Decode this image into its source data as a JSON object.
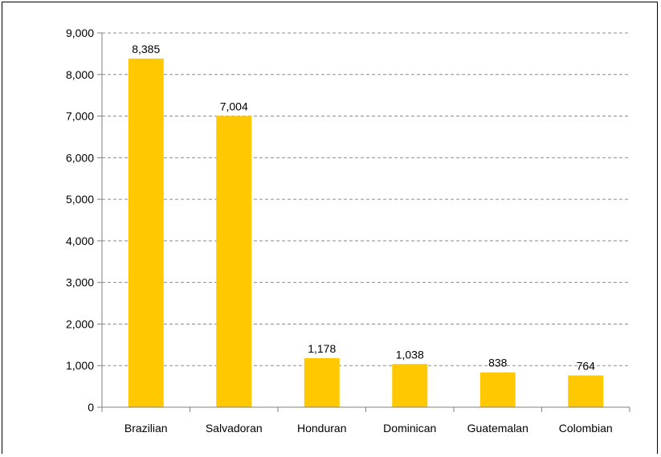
{
  "chart_data": {
    "type": "bar",
    "categories": [
      "Brazilian",
      "Salvadoran",
      "Honduran",
      "Dominican",
      "Guatemalan",
      "Colombian"
    ],
    "series": [
      {
        "values": [
          8385,
          7004,
          1178,
          1038,
          838,
          764
        ]
      }
    ],
    "data_labels": [
      "8,385",
      "7,004",
      "1,178",
      "1,038",
      "838",
      "764"
    ],
    "ylim": [
      0,
      9000
    ],
    "yticks": [
      0,
      1000,
      2000,
      3000,
      4000,
      5000,
      6000,
      7000,
      8000,
      9000
    ],
    "ytick_labels": [
      "0",
      "1,000",
      "2,000",
      "3,000",
      "4,000",
      "5,000",
      "6,000",
      "7,000",
      "8,000",
      "9,000"
    ],
    "grid": true,
    "grid_style": "dashed",
    "legend": false,
    "colors": {
      "bar": "#FFC800",
      "grid": "#8c8c8c",
      "axis": "#808080"
    }
  }
}
